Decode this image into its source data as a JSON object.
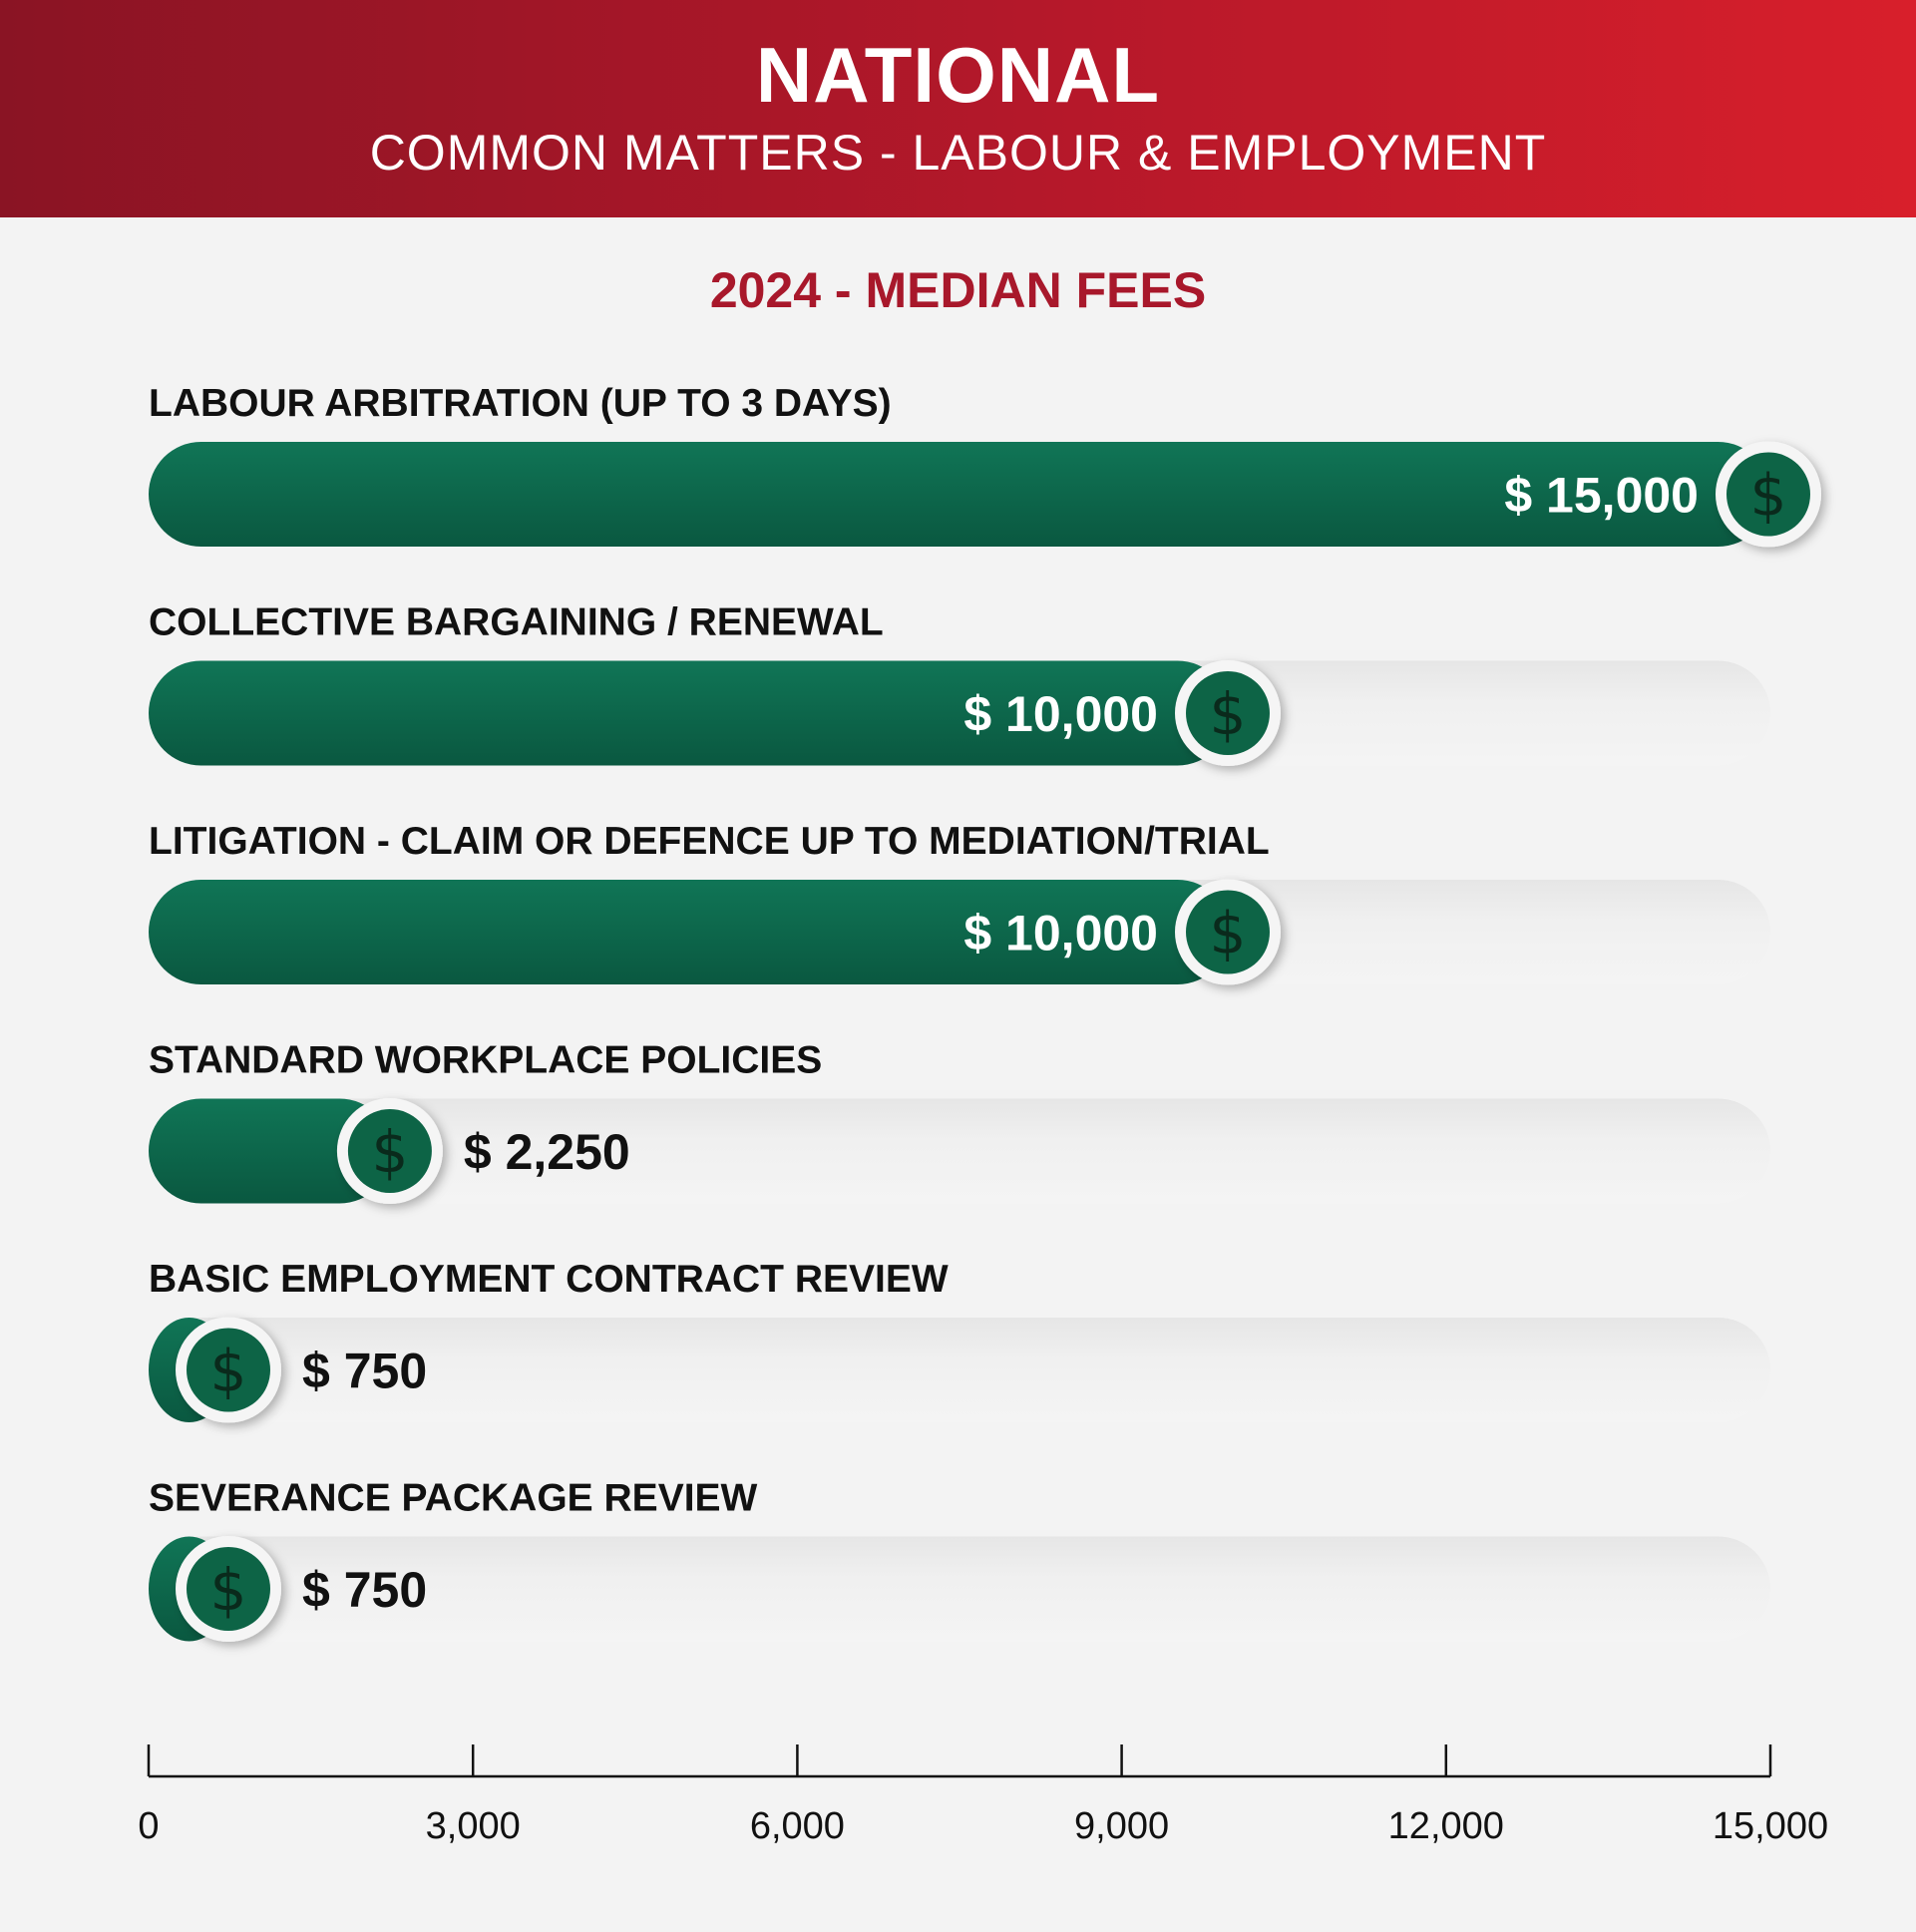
{
  "header": {
    "title": "NATIONAL",
    "subtitle": "COMMON MATTERS - LABOUR & EMPLOYMENT"
  },
  "colors": {
    "header_start": "#8a1424",
    "header_end": "#d81f2b",
    "bar_green": "#0e6b4e",
    "bar_green_dark": "#0a5840",
    "chart_title": "#a8182b",
    "background": "#f3f3f3"
  },
  "icon": "dollar-coin-icon",
  "chart_data": {
    "type": "bar",
    "orientation": "horizontal",
    "title": "2024 - MEDIAN FEES",
    "categories": [
      "LABOUR ARBITRATION (UP TO 3 DAYS)",
      "COLLECTIVE BARGAINING / RENEWAL",
      "LITIGATION - CLAIM OR DEFENCE UP TO MEDIATION/TRIAL",
      "STANDARD WORKPLACE POLICIES",
      "BASIC EMPLOYMENT CONTRACT REVIEW",
      "SEVERANCE PACKAGE REVIEW"
    ],
    "values": [
      15000,
      10000,
      10000,
      2250,
      750,
      750
    ],
    "value_labels": [
      "$ 15,000",
      "$ 10,000",
      "$ 10,000",
      "$ 2,250",
      "$ 750",
      "$ 750"
    ],
    "xlim": [
      0,
      15000
    ],
    "xticks": [
      0,
      3000,
      6000,
      9000,
      12000,
      15000
    ],
    "xtick_labels": [
      "0",
      "3,000",
      "6,000",
      "9,000",
      "12,000",
      "15,000"
    ],
    "xlabel": "",
    "ylabel": "",
    "grid": false,
    "legend": "none"
  }
}
